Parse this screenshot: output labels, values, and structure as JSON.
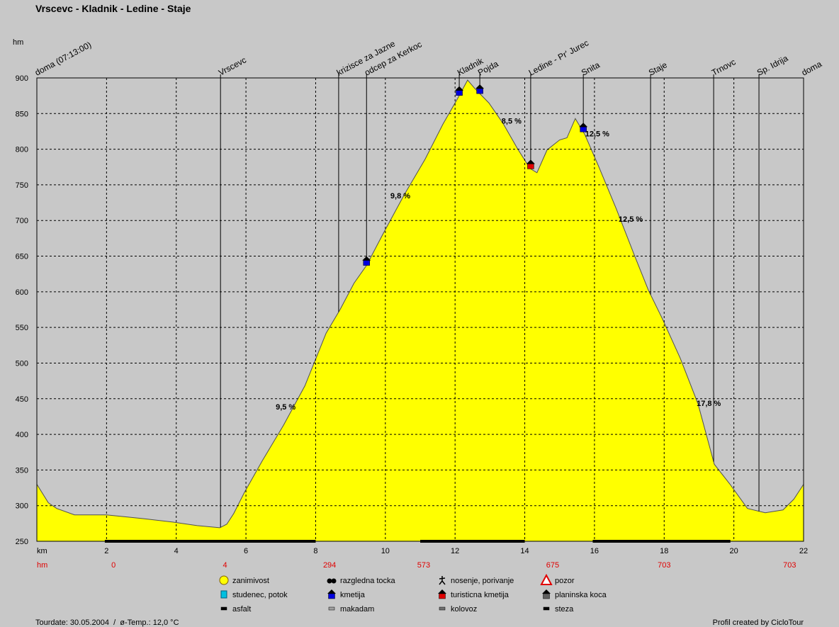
{
  "chart_data": {
    "type": "area",
    "title": "Vrscevc - Kladnik - Ledine - Staje",
    "y_label": "hm",
    "x_label": "km",
    "color": "#ffff00",
    "line_color": "#505050",
    "grid": true,
    "xlim": [
      0,
      22
    ],
    "ylim": [
      250,
      900
    ],
    "xticks": [
      0,
      2,
      4,
      6,
      8,
      10,
      12,
      14,
      16,
      18,
      20,
      22
    ],
    "yticks": [
      250,
      300,
      350,
      400,
      450,
      500,
      550,
      600,
      650,
      700,
      750,
      800,
      850,
      900
    ],
    "x": [
      0,
      0.33,
      0.57,
      1.08,
      2,
      3,
      3.9,
      4.6,
      5.25,
      5.45,
      5.65,
      5.96,
      6.47,
      7.08,
      7.69,
      8.3,
      8.7,
      9.1,
      9.46,
      9.93,
      10.54,
      11.14,
      11.65,
      12.06,
      12.36,
      12.57,
      12.97,
      13.38,
      13.79,
      14.15,
      14.35,
      14.64,
      15.0,
      15.21,
      15.45,
      15.72,
      16.12,
      16.63,
      17.14,
      17.55,
      17.95,
      18.46,
      18.97,
      19.44,
      19.89,
      20.39,
      20.9,
      21.41,
      21.72,
      22
    ],
    "values": [
      330,
      304,
      296,
      287,
      287,
      282,
      277,
      272,
      269,
      274,
      289,
      319,
      363,
      413,
      468,
      542,
      575,
      612,
      637,
      681,
      736,
      786,
      835,
      870,
      897,
      885,
      865,
      836,
      801,
      773,
      767,
      799,
      813,
      816,
      843,
      821,
      776,
      716,
      652,
      602,
      562,
      507,
      443,
      358,
      330,
      296,
      290,
      294,
      309,
      330
    ],
    "waypoints": [
      {
        "name": "doma (07:13:00)",
        "km": 0
      },
      {
        "name": "Vrscevc",
        "km": 5.27
      },
      {
        "name": "krizisce za Jazne",
        "km": 8.66
      },
      {
        "name": "odcep za Kerkoc",
        "km": 9.46,
        "icon": "kmetija"
      },
      {
        "name": "Kladnik",
        "km": 12.12,
        "icon": "kmetija"
      },
      {
        "name": "Pojda",
        "km": 12.71,
        "icon": "kmetija"
      },
      {
        "name": "Ledine - Pr' Jurec",
        "km": 14.17,
        "icon": "turisticna"
      },
      {
        "name": "Snita",
        "km": 15.68,
        "icon": "kmetija"
      },
      {
        "name": "Staje",
        "km": 17.61
      },
      {
        "name": "Trnovc",
        "km": 19.42
      },
      {
        "name": "Sp. Idrija",
        "km": 20.72
      },
      {
        "name": "doma",
        "km": 22
      }
    ],
    "gradients": [
      {
        "label": "9,5 %",
        "km": 7.14,
        "hm": 435
      },
      {
        "label": "9,8 %",
        "km": 10.43,
        "hm": 731
      },
      {
        "label": "8,5 %",
        "km": 13.62,
        "hm": 836
      },
      {
        "label": "12,5 %",
        "km": 16.08,
        "hm": 818
      },
      {
        "label": "12,5 %",
        "km": 17.04,
        "hm": 698
      },
      {
        "label": "17,8 %",
        "km": 19.28,
        "hm": 440
      }
    ],
    "climb_label": "hm",
    "climb": [
      {
        "km": 2.2,
        "value": 0
      },
      {
        "km": 5.4,
        "value": 4
      },
      {
        "km": 8.4,
        "value": 294
      },
      {
        "km": 11.1,
        "value": 573
      },
      {
        "km": 14.8,
        "value": 675
      },
      {
        "km": 18.0,
        "value": 703
      },
      {
        "km": 21.6,
        "value": 703
      }
    ],
    "road_segments": [
      {
        "from": 1.95,
        "to": 8.0
      },
      {
        "from": 11.0,
        "to": 14.0
      },
      {
        "from": 15.95,
        "to": 19.9
      }
    ],
    "legend": [
      {
        "label": "zanimivost",
        "icon": "smiley"
      },
      {
        "label": "razgledna tocka",
        "icon": "binoculars"
      },
      {
        "label": "nosenje, porivanje",
        "icon": "walker"
      },
      {
        "label": "pozor",
        "icon": "warning"
      },
      {
        "label": "studenec, potok",
        "icon": "cup"
      },
      {
        "label": "kmetija",
        "icon": "kmetija"
      },
      {
        "label": "turisticna kmetija",
        "icon": "turisticna"
      },
      {
        "label": "planinska koca",
        "icon": "koca"
      },
      {
        "label": "asfalt",
        "icon": "bar-black"
      },
      {
        "label": "makadam",
        "icon": "bar-gray"
      },
      {
        "label": "kolovoz",
        "icon": "bar-dark"
      },
      {
        "label": "steza",
        "icon": "bar-black"
      }
    ],
    "footer_left": "Tourdate: 30.05.2004  /  ø-Temp.: 12,0 °C",
    "footer_right": "Profil created by CicloTour"
  }
}
